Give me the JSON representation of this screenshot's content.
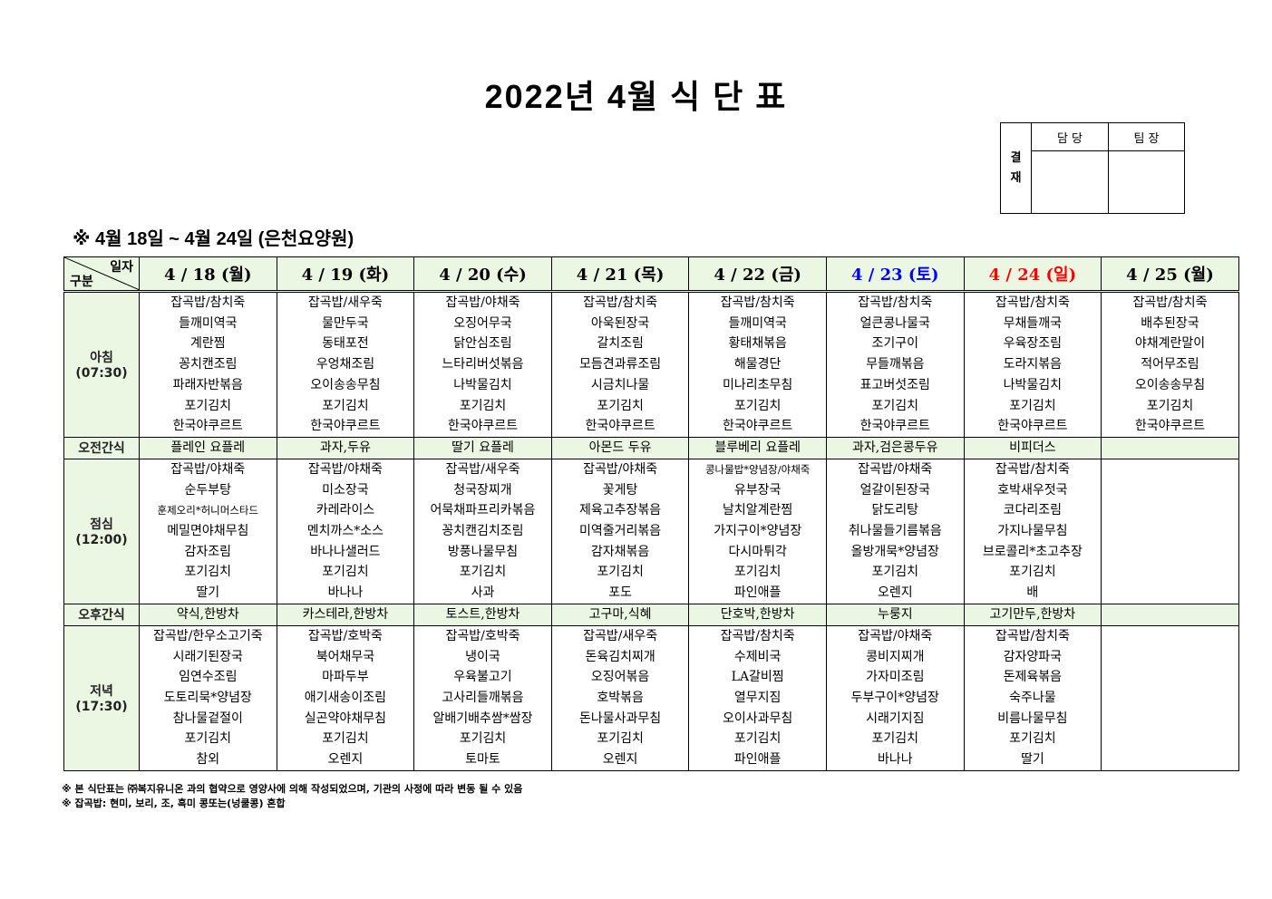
{
  "title": "2022년 4월 식 단 표",
  "approval": {
    "label": "결\n재",
    "label_top": "결",
    "label_bottom": "재",
    "col1": "담 당",
    "col2": "팀 장"
  },
  "subtitle": "※ 4월 18일 ~ 4월 24일 (은천요양원)",
  "header": {
    "corner_top": "일자",
    "corner_bottom": "구분"
  },
  "colors": {
    "saturday": "#0000ff",
    "sunday": "#ff0000",
    "header_bg": "#ebf7e3"
  },
  "days": [
    {
      "label": "4 / 18 (월)",
      "color": "#000000"
    },
    {
      "label": "4 / 19 (화)",
      "color": "#000000"
    },
    {
      "label": "4 / 20 (수)",
      "color": "#000000"
    },
    {
      "label": "4 / 21 (목)",
      "color": "#000000"
    },
    {
      "label": "4 / 22 (금)",
      "color": "#000000"
    },
    {
      "label": "4 / 23 (토)",
      "color": "#0000ff"
    },
    {
      "label": "4 / 24 (일)",
      "color": "#ff0000"
    },
    {
      "label": "4 / 25 (월)",
      "color": "#000000"
    }
  ],
  "rows": [
    {
      "label": "아침",
      "time": "(07:30)",
      "type": "meal",
      "cells": [
        [
          "잡곡밥/참치죽",
          "들깨미역국",
          "계란찜",
          "꽁치캔조림",
          "파래자반볶음",
          "포기김치",
          "한국야쿠르트"
        ],
        [
          "잡곡밥/새우죽",
          "물만두국",
          "동태포전",
          "우엉채조림",
          "오이송송무침",
          "포기김치",
          "한국야쿠르트"
        ],
        [
          "잡곡밥/야채죽",
          "오징어무국",
          "닭안심조림",
          "느타리버섯볶음",
          "나박물김치",
          "포기김치",
          "한국야쿠르트"
        ],
        [
          "잡곡밥/참치죽",
          "아욱된장국",
          "갈치조림",
          "모듬견과류조림",
          "시금치나물",
          "포기김치",
          "한국야쿠르트"
        ],
        [
          "잡곡밥/참치죽",
          "들깨미역국",
          "황태채볶음",
          "해물경단",
          "미나리초무침",
          "포기김치",
          "한국야쿠르트"
        ],
        [
          "잡곡밥/참치죽",
          "얼큰콩나물국",
          "조기구이",
          "무들깨볶음",
          "표고버섯조림",
          "포기김치",
          "한국야쿠르트"
        ],
        [
          "잡곡밥/참치죽",
          "무채들깨국",
          "우육장조림",
          "도라지볶음",
          "나박물김치",
          "포기김치",
          "한국야쿠르트"
        ],
        [
          "잡곡밥/참치죽",
          "배추된장국",
          "야채계란말이",
          "적어무조림",
          "오이송송무침",
          "포기김치",
          "한국야쿠르트"
        ]
      ]
    },
    {
      "label": "오전간식",
      "time": "",
      "type": "snack",
      "cells": [
        [
          "플레인 요플레"
        ],
        [
          "과자,두유"
        ],
        [
          "딸기 요플레"
        ],
        [
          "아몬드 두유"
        ],
        [
          "블루베리 요플레"
        ],
        [
          "과자,검은콩두유"
        ],
        [
          "비피더스"
        ],
        []
      ]
    },
    {
      "label": "점심",
      "time": "(12:00)",
      "type": "meal",
      "cells": [
        [
          "잡곡밥/야채죽",
          "순두부탕",
          "훈제오리*허니머스타드",
          "메밀면야채무침",
          "감자조림",
          "포기김치",
          "딸기"
        ],
        [
          "잡곡밥/야채죽",
          "미소장국",
          "카레라이스",
          "멘치까스*소스",
          "바나나샐러드",
          "포기김치",
          "바나나"
        ],
        [
          "잡곡밥/새우죽",
          "청국장찌개",
          "어묵채파프리카볶음",
          "꽁치캔김치조림",
          "방풍나물무침",
          "포기김치",
          "사과"
        ],
        [
          "잡곡밥/야채죽",
          "꽃게탕",
          "제육고추장볶음",
          "미역줄거리볶음",
          "감자채볶음",
          "포기김치",
          "포도"
        ],
        [
          "콩나물밥*양념장/야채죽",
          "유부장국",
          "날치알계란찜",
          "가지구이*양념장",
          "다시마튀각",
          "포기김치",
          "파인애플"
        ],
        [
          "잡곡밥/야채죽",
          "얼갈이된장국",
          "닭도리탕",
          "취나물들기름볶음",
          "올방개묵*양념장",
          "포기김치",
          "오렌지"
        ],
        [
          "잡곡밥/참치죽",
          "호박새우젓국",
          "코다리조림",
          "가지나물무침",
          "브로콜리*초고추장",
          "포기김치",
          "배"
        ],
        []
      ]
    },
    {
      "label": "오후간식",
      "time": "",
      "type": "snack",
      "cells": [
        [
          "약식,한방차"
        ],
        [
          "카스테라,한방차"
        ],
        [
          "토스트,한방차"
        ],
        [
          "고구마,식혜"
        ],
        [
          "단호박,한방차"
        ],
        [
          "누룽지"
        ],
        [
          "고기만두,한방차"
        ],
        []
      ]
    },
    {
      "label": "저녁",
      "time": "(17:30)",
      "type": "meal",
      "cells": [
        [
          "잡곡밥/한우소고기죽",
          "시래기된장국",
          "임연수조림",
          "도토리묵*양념장",
          "참나물겉절이",
          "포기김치",
          "참외"
        ],
        [
          "잡곡밥/호박죽",
          "북어채무국",
          "마파두부",
          "애기새송이조림",
          "실곤약야채무침",
          "포기김치",
          "오렌지"
        ],
        [
          "잡곡밥/호박죽",
          "냉이국",
          "우육불고기",
          "고사리들깨볶음",
          "알배기배추쌈*쌈장",
          "포기김치",
          "토마토"
        ],
        [
          "잡곡밥/새우죽",
          "돈육김치찌개",
          "오징어볶음",
          "호박볶음",
          "돈나물사과무침",
          "포기김치",
          "오렌지"
        ],
        [
          "잡곡밥/참치죽",
          "수제비국",
          "LA갈비찜",
          "열무지짐",
          "오이사과무침",
          "포기김치",
          "파인애플"
        ],
        [
          "잡곡밥/야채죽",
          "콩비지찌개",
          "가자미조림",
          "두부구이*양념장",
          "시래기지짐",
          "포기김치",
          "바나나"
        ],
        [
          "잡곡밥/참치죽",
          "감자양파국",
          "돈제육볶음",
          "숙주나물",
          "비름나물무침",
          "포기김치",
          "딸기"
        ],
        []
      ]
    }
  ],
  "notes": [
    "※ 본 식단표는 ㈜복지유니온 과의 협약으로 영양사에 의해 작성되었으며, 기관의 사정에 따라 변동 될 수 있음",
    "※ 잡곡밥: 현미, 보리, 조, 흑미 콩또는(넝쿨콩) 혼합"
  ]
}
